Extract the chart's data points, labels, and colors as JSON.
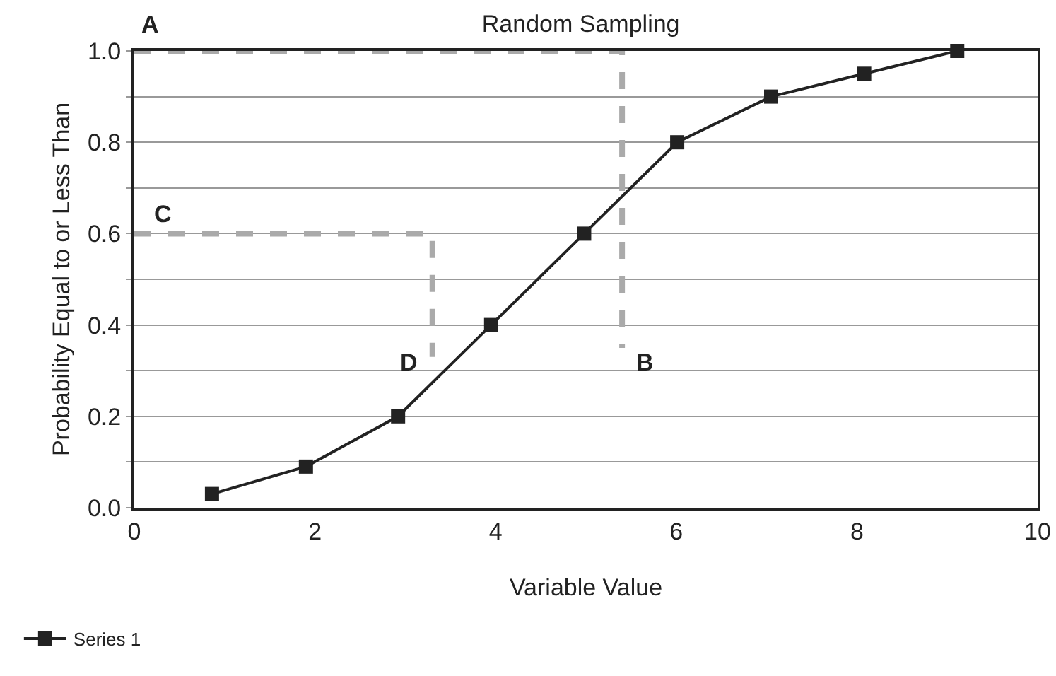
{
  "chart_data": {
    "type": "line",
    "title": "Random Sampling",
    "xlabel": "Variable Value",
    "ylabel": "Probability Equal to or Less Than",
    "xlim": [
      0,
      10
    ],
    "xticks": [
      0,
      2,
      4,
      6,
      8,
      10
    ],
    "ylim": [
      0,
      1
    ],
    "yticks": [
      {
        "value": 0,
        "label": "0.0"
      },
      {
        "value": 0.1,
        "label": null
      },
      {
        "value": 0.2,
        "label": "0.2"
      },
      {
        "value": 0.3,
        "label": null
      },
      {
        "value": 0.4,
        "label": "0.4"
      },
      {
        "value": 0.5,
        "label": null
      },
      {
        "value": 0.6,
        "label": "0.6"
      },
      {
        "value": 0.7,
        "label": null
      },
      {
        "value": 0.8,
        "label": "0.8"
      },
      {
        "value": 0.9,
        "label": null
      },
      {
        "value": 1,
        "label": "1.0"
      }
    ],
    "grid": "y",
    "legend": "bottom left",
    "marker": "square",
    "line_style": "solid",
    "series": [
      {
        "name": "Series 1",
        "color": "#222222",
        "x": [
          0.86,
          1.9,
          2.92,
          3.95,
          4.98,
          6.01,
          7.05,
          8.08,
          9.11
        ],
        "values": [
          0.03,
          0.09,
          0.2,
          0.4,
          0.6,
          0.8,
          0.9,
          0.95,
          1.0
        ]
      },
      {
        "color": "#aaaaaa",
        "line_style": "dashed",
        "marker": "none",
        "x": [
          0,
          5.4,
          5.4
        ],
        "values": [
          1,
          1,
          0.35
        ]
      },
      {
        "color": "#aaaaaa",
        "line_style": "dashed",
        "marker": "none",
        "x": [
          0,
          3.3,
          3.3
        ],
        "values": [
          0.6,
          0.6,
          0.33
        ]
      }
    ],
    "annotations": [
      "A",
      "B",
      "C",
      "D"
    ]
  }
}
